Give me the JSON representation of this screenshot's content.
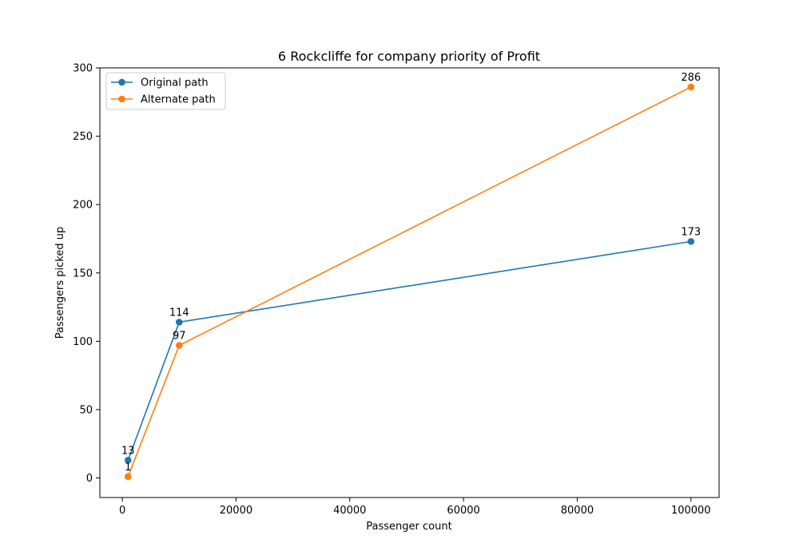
{
  "chart_data": {
    "type": "line",
    "title": "6 Rockcliffe for company priority of Profit",
    "xlabel": "Passenger count",
    "ylabel": "Passengers picked up",
    "xlim": [
      -3950,
      104950
    ],
    "ylim": [
      -14.3,
      300
    ],
    "xticks": [
      0,
      20000,
      40000,
      60000,
      80000,
      100000
    ],
    "yticks": [
      0,
      50,
      100,
      150,
      200,
      250,
      300
    ],
    "grid": false,
    "legend_position": "top-left",
    "x": [
      1000,
      10000,
      100000
    ],
    "series": [
      {
        "name": "Original path",
        "color": "#1f77b4",
        "values": [
          13,
          114,
          173
        ],
        "labels": [
          "13",
          "114",
          "173"
        ]
      },
      {
        "name": "Alternate path",
        "color": "#ff7f0e",
        "values": [
          1,
          97,
          286
        ],
        "labels": [
          "1",
          "97",
          "286"
        ]
      }
    ]
  }
}
